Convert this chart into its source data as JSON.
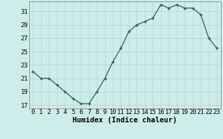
{
  "x": [
    0,
    1,
    2,
    3,
    4,
    5,
    6,
    7,
    8,
    9,
    10,
    11,
    12,
    13,
    14,
    15,
    16,
    17,
    18,
    19,
    20,
    21,
    22,
    23
  ],
  "y": [
    22,
    21,
    21,
    20,
    19,
    18,
    17.2,
    17.2,
    19,
    21,
    23.5,
    25.5,
    28,
    29,
    29.5,
    30,
    32,
    31.5,
    32,
    31.5,
    31.5,
    30.5,
    27,
    25.5
  ],
  "line_color": "#2e6b5e",
  "marker_color": "#2e6b5e",
  "bg_color": "#ceecea",
  "grid_color": "#b0d8d4",
  "xlabel": "Humidex (Indice chaleur)",
  "xlim": [
    -0.5,
    23.5
  ],
  "ylim": [
    16.5,
    32.5
  ],
  "yticks": [
    17,
    19,
    21,
    23,
    25,
    27,
    29,
    31
  ],
  "xticks": [
    0,
    1,
    2,
    3,
    4,
    5,
    6,
    7,
    8,
    9,
    10,
    11,
    12,
    13,
    14,
    15,
    16,
    17,
    18,
    19,
    20,
    21,
    22,
    23
  ],
  "xlabel_fontsize": 7.5,
  "tick_fontsize": 6.5,
  "linewidth": 1.0,
  "markersize": 2.0
}
